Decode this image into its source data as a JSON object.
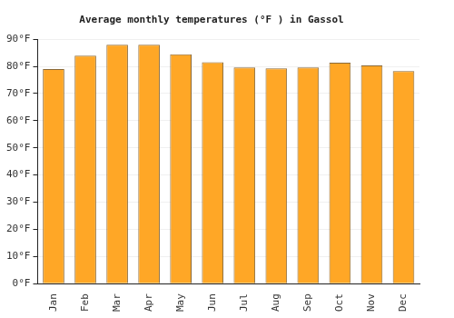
{
  "chart_data": {
    "type": "bar",
    "title": "Average monthly temperatures (°F ) in Gassol",
    "categories": [
      "Jan",
      "Feb",
      "Mar",
      "Apr",
      "May",
      "Jun",
      "Jul",
      "Aug",
      "Sep",
      "Oct",
      "Nov",
      "Dec"
    ],
    "values": [
      79,
      84,
      88,
      88,
      84.5,
      81.5,
      79.6,
      79.3,
      79.6,
      81.4,
      80.4,
      78.3
    ],
    "color": "#ffa726",
    "ylim": [
      0,
      90
    ],
    "yticks": [
      {
        "value": 0,
        "label": "0°F"
      },
      {
        "value": 10,
        "label": "10°F"
      },
      {
        "value": 20,
        "label": "20°F"
      },
      {
        "value": 30,
        "label": "30°F"
      },
      {
        "value": 40,
        "label": "40°F"
      },
      {
        "value": 50,
        "label": "50°F"
      },
      {
        "value": 60,
        "label": "60°F"
      },
      {
        "value": 70,
        "label": "70°F"
      },
      {
        "value": 80,
        "label": "80°F"
      },
      {
        "value": 90,
        "label": "90°F"
      }
    ],
    "grid": true
  }
}
